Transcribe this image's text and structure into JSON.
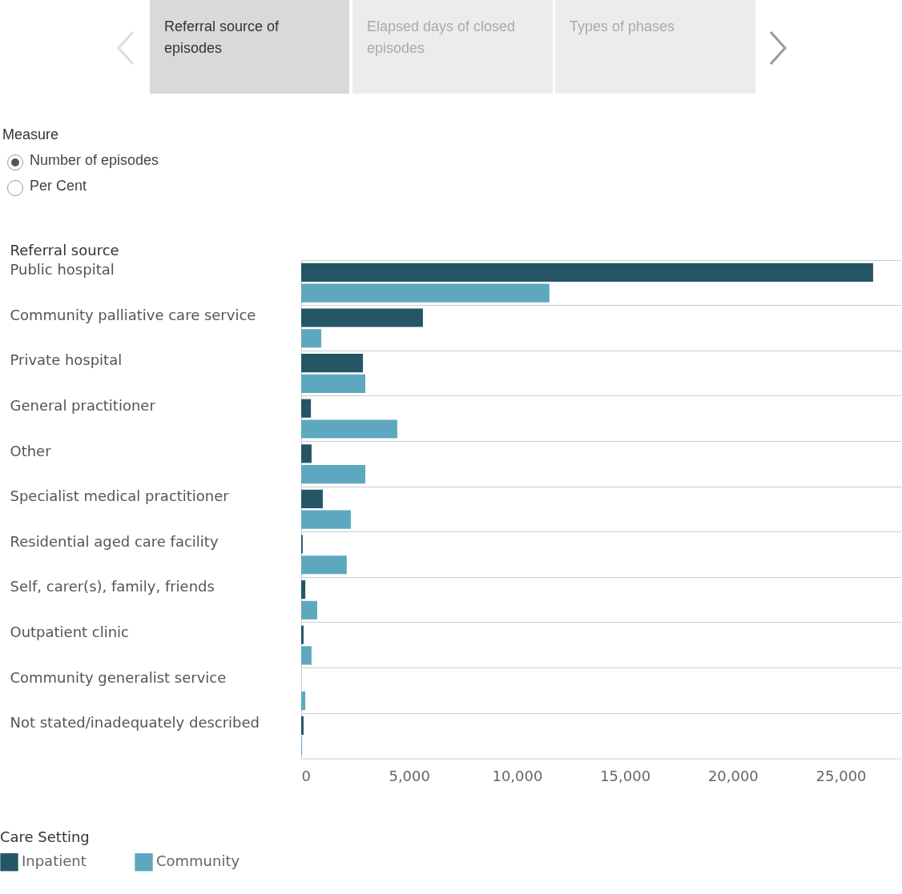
{
  "chart_data": {
    "type": "bar",
    "orientation": "horizontal",
    "ylabel": "Referral source",
    "legend_title": "Care Setting",
    "legend": "bottom left",
    "grid": "y",
    "annotations": [
      "Referral source of episodes",
      "Elapsed days of closed episodes",
      "Types of phases",
      "Measure",
      "Number of episodes",
      "Per Cent"
    ],
    "categories": [
      "Public hospital",
      "Community palliative care service",
      "Private hospital",
      "General practitioner",
      "Other",
      "Specialist medical practitioner",
      "Residential aged care facility",
      "Self, carer(s), family, friends",
      "Outpatient clinic",
      "Community generalist service",
      "Not stated/inadequately described"
    ],
    "series": [
      {
        "name": "Inpatient",
        "color": "#255665",
        "values": [
          26500,
          5640,
          2860,
          450,
          480,
          1000,
          70,
          190,
          110,
          0,
          110
        ]
      },
      {
        "name": "Community",
        "color": "#5ea8bf",
        "values": [
          11500,
          930,
          2970,
          4450,
          2970,
          2300,
          2110,
          740,
          480,
          190,
          40
        ]
      }
    ],
    "xlim": [
      0,
      27800
    ],
    "xticks": [
      0,
      {
        "value": 5000,
        "label": "5,000"
      },
      {
        "value": 10000,
        "label": "10,000"
      },
      {
        "value": 15000,
        "label": "15,000"
      },
      {
        "value": 20000,
        "label": "20,000"
      },
      {
        "value": 25000,
        "label": "25,000"
      }
    ]
  }
}
